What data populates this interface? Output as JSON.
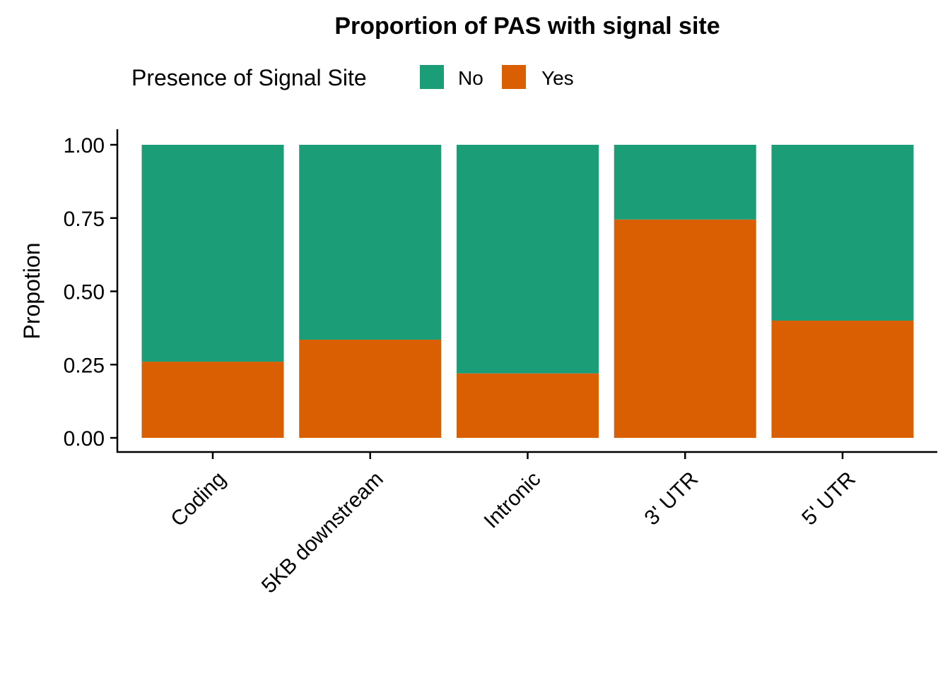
{
  "chart_data": {
    "type": "bar",
    "stacked": true,
    "title": "Proportion of PAS with signal site",
    "xlabel": "",
    "ylabel": "Propotion",
    "ylim": [
      0,
      1
    ],
    "yticks": [
      "0.00",
      "0.25",
      "0.50",
      "0.75",
      "1.00"
    ],
    "ytick_values": [
      0,
      0.25,
      0.5,
      0.75,
      1.0
    ],
    "categories": [
      "Coding",
      "5KB downstream",
      "Intronic",
      "3' UTR",
      "5' UTR"
    ],
    "legend": {
      "title": "Presence of Signal Site",
      "position": "top"
    },
    "series": [
      {
        "name": "Yes",
        "color": "#D95F02",
        "values": [
          0.26,
          0.335,
          0.22,
          0.745,
          0.4
        ]
      },
      {
        "name": "No",
        "color": "#1B9E77",
        "values": [
          0.74,
          0.665,
          0.78,
          0.255,
          0.6
        ]
      }
    ],
    "legend_order": [
      "No",
      "Yes"
    ]
  }
}
